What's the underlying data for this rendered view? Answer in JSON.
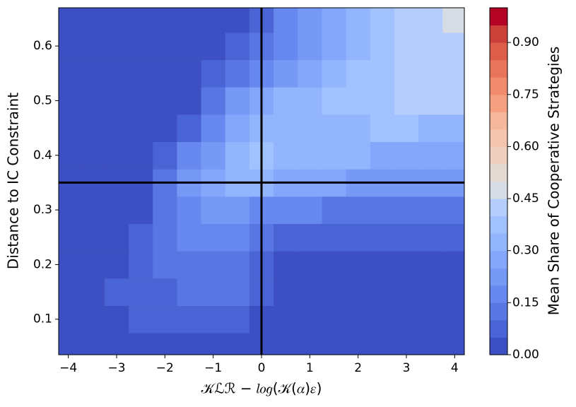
{
  "chart_data": {
    "type": "contour",
    "x_label": "𝒦ℒℛ − 𝑙𝑜𝑔(𝒦(𝛼)𝜀)",
    "y_label": "Distance to IC Constraint",
    "colorbar_label": "Mean Share of Cooperative Strategies",
    "xlim": [
      -4.2,
      4.2
    ],
    "ylim": [
      0.035,
      0.67
    ],
    "xticks": [
      {
        "value": -4,
        "label": "−4"
      },
      {
        "value": -3,
        "label": "−3"
      },
      {
        "value": -2,
        "label": "−2"
      },
      {
        "value": -1,
        "label": "−1"
      },
      0,
      1,
      2,
      3,
      4
    ],
    "yticks": [
      0.1,
      0.2,
      0.3,
      0.4,
      0.5,
      0.6
    ],
    "vlines": [
      0
    ],
    "hlines": [
      0.35
    ],
    "line_color": "#000000",
    "x": [
      -4,
      -3.5,
      -3,
      -2.5,
      -2,
      -1.5,
      -1,
      -0.5,
      0,
      0.5,
      1,
      1.5,
      2,
      2.5,
      3,
      3.5,
      4
    ],
    "y": [
      0.05,
      0.1,
      0.15,
      0.2,
      0.25,
      0.3,
      0.35,
      0.4,
      0.45,
      0.5,
      0.55,
      0.6,
      0.65
    ],
    "z": [
      [
        0.02,
        0.02,
        0.02,
        0.02,
        0.02,
        0.02,
        0.02,
        0.02,
        0.02,
        0.02,
        0.02,
        0.02,
        0.02,
        0.02,
        0.02,
        0.02,
        0.02
      ],
      [
        0.02,
        0.02,
        0.03,
        0.07,
        0.07,
        0.07,
        0.07,
        0.07,
        0.03,
        0.02,
        0.02,
        0.02,
        0.02,
        0.02,
        0.02,
        0.02,
        0.02
      ],
      [
        0.02,
        0.02,
        0.06,
        0.08,
        0.09,
        0.11,
        0.12,
        0.12,
        0.06,
        0.02,
        0.02,
        0.02,
        0.02,
        0.02,
        0.02,
        0.02,
        0.02
      ],
      [
        0.02,
        0.02,
        0.02,
        0.07,
        0.12,
        0.13,
        0.14,
        0.13,
        0.08,
        0.03,
        0.02,
        0.02,
        0.02,
        0.02,
        0.02,
        0.02,
        0.02
      ],
      [
        0.02,
        0.02,
        0.02,
        0.06,
        0.13,
        0.16,
        0.17,
        0.16,
        0.12,
        0.09,
        0.07,
        0.06,
        0.06,
        0.06,
        0.06,
        0.06,
        0.06
      ],
      [
        0.02,
        0.02,
        0.02,
        0.04,
        0.14,
        0.19,
        0.22,
        0.21,
        0.18,
        0.16,
        0.15,
        0.14,
        0.13,
        0.13,
        0.13,
        0.12,
        0.12
      ],
      [
        0.02,
        0.02,
        0.02,
        0.02,
        0.11,
        0.21,
        0.26,
        0.3,
        0.31,
        0.29,
        0.28,
        0.26,
        0.24,
        0.23,
        0.23,
        0.22,
        0.22
      ],
      [
        0.02,
        0.02,
        0.02,
        0.02,
        0.06,
        0.16,
        0.24,
        0.3,
        0.35,
        0.34,
        0.33,
        0.31,
        0.3,
        0.29,
        0.28,
        0.28,
        0.27
      ],
      [
        0.02,
        0.02,
        0.02,
        0.02,
        0.03,
        0.09,
        0.19,
        0.26,
        0.31,
        0.33,
        0.34,
        0.34,
        0.34,
        0.35,
        0.35,
        0.34,
        0.34
      ],
      [
        0.02,
        0.02,
        0.02,
        0.02,
        0.02,
        0.03,
        0.12,
        0.2,
        0.26,
        0.3,
        0.33,
        0.35,
        0.36,
        0.38,
        0.4,
        0.41,
        0.41
      ],
      [
        0.02,
        0.02,
        0.02,
        0.02,
        0.02,
        0.02,
        0.06,
        0.14,
        0.19,
        0.24,
        0.28,
        0.32,
        0.35,
        0.38,
        0.4,
        0.42,
        0.43
      ],
      [
        0.02,
        0.02,
        0.02,
        0.02,
        0.02,
        0.02,
        0.02,
        0.07,
        0.13,
        0.19,
        0.24,
        0.29,
        0.33,
        0.37,
        0.4,
        0.43,
        0.44
      ],
      [
        0.02,
        0.02,
        0.02,
        0.02,
        0.02,
        0.02,
        0.02,
        0.03,
        0.08,
        0.15,
        0.21,
        0.27,
        0.32,
        0.36,
        0.4,
        0.44,
        0.46
      ]
    ],
    "levels": [
      0,
      0.05,
      0.1,
      0.15,
      0.2,
      0.25,
      0.3,
      0.35,
      0.4,
      0.45,
      0.5,
      0.55,
      0.6,
      0.65,
      0.7,
      0.75,
      0.8,
      0.85,
      0.9,
      0.95,
      1.0
    ],
    "colors": [
      "#3d50c3",
      "#4b64d5",
      "#5977e3",
      "#6788ee",
      "#7699f6",
      "#84a7fc",
      "#93b5fe",
      "#a2c1ff",
      "#b5cdfa",
      "#d6dce4",
      "#e4d9d2",
      "#efcfbf",
      "#f4c5ad",
      "#f6b89c",
      "#f5a081",
      "#f08b6e",
      "#e7745b",
      "#dc5d4a",
      "#cc403a",
      "#b40426"
    ],
    "colorbar_ticks": [
      {
        "value": 0,
        "label": "0.00"
      },
      {
        "value": 0.15,
        "label": "0.15"
      },
      {
        "value": 0.3,
        "label": "0.30"
      },
      {
        "value": 0.45,
        "label": "0.45"
      },
      {
        "value": 0.6,
        "label": "0.60"
      },
      {
        "value": 0.75,
        "label": "0.75"
      },
      {
        "value": 0.9,
        "label": "0.90"
      }
    ]
  }
}
